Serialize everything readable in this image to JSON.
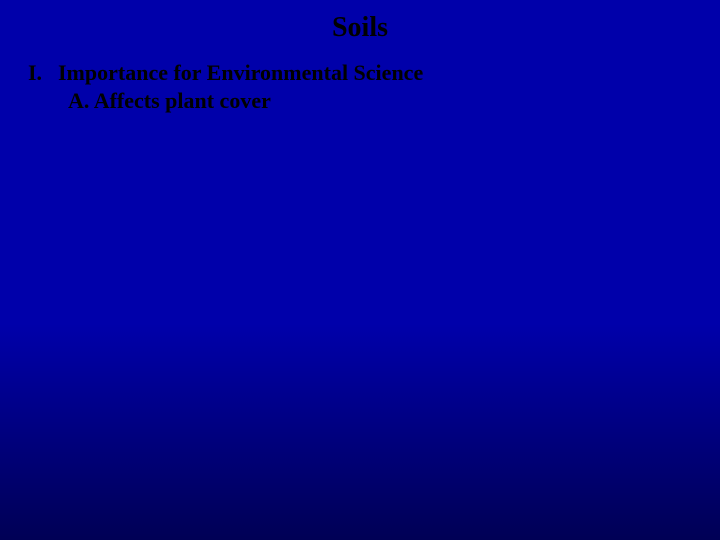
{
  "slide": {
    "title": "Soils",
    "background_gradient_start": "#0000aa",
    "background_gradient_end": "#000055",
    "text_color": "#000000",
    "title_fontsize": 28,
    "body_fontsize": 22,
    "font_family": "Times New Roman"
  },
  "outline": {
    "level1": {
      "marker": "I.",
      "text": "Importance for Environmental Science"
    },
    "level2": {
      "marker": "A.",
      "text": "Affects plant cover"
    }
  }
}
